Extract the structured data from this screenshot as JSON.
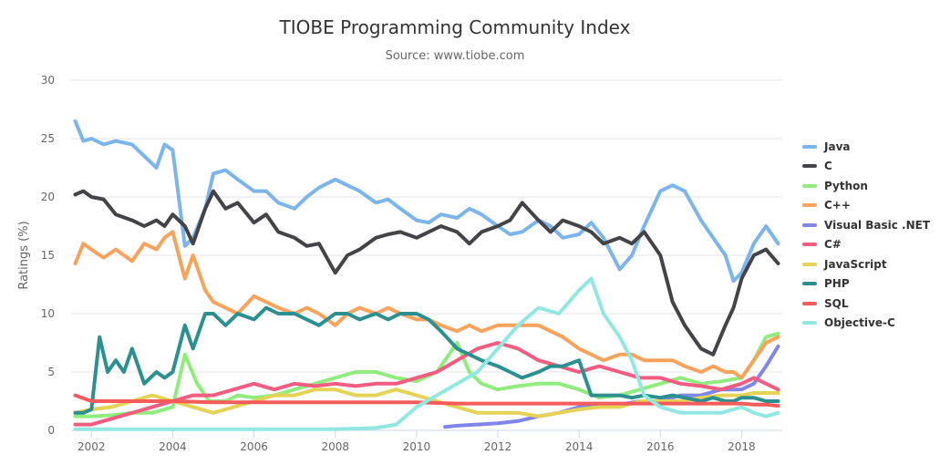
{
  "chart_data": {
    "type": "line",
    "title": "TIOBE Programming Community Index",
    "subtitle": "Source: www.tiobe.com",
    "ylabel": "Ratings (%)",
    "xlabel": "",
    "xlim": [
      2001.5,
      2019.0
    ],
    "ylim": [
      0,
      30
    ],
    "y_ticks": [
      0,
      5,
      10,
      15,
      20,
      25,
      30
    ],
    "x_ticks": [
      2002,
      2004,
      2006,
      2008,
      2010,
      2012,
      2014,
      2016,
      2018
    ],
    "grid": "horizontal",
    "legend_position": "right",
    "series": [
      {
        "name": "Java",
        "color": "#7cb5ec",
        "x": [
          2001.6,
          2001.8,
          2002,
          2002.3,
          2002.6,
          2003,
          2003.3,
          2003.6,
          2003.8,
          2004,
          2004.3,
          2004.5,
          2004.8,
          2005,
          2005.3,
          2005.6,
          2006,
          2006.3,
          2006.6,
          2007,
          2007.3,
          2007.6,
          2008,
          2008.3,
          2008.6,
          2009,
          2009.3,
          2009.6,
          2010,
          2010.3,
          2010.6,
          2011,
          2011.3,
          2011.6,
          2012,
          2012.3,
          2012.6,
          2013,
          2013.3,
          2013.6,
          2014,
          2014.3,
          2014.6,
          2015,
          2015.3,
          2015.6,
          2016,
          2016.3,
          2016.6,
          2017,
          2017.3,
          2017.6,
          2017.8,
          2018,
          2018.3,
          2018.6,
          2018.9
        ],
        "y": [
          26.5,
          24.8,
          25,
          24.5,
          24.8,
          24.5,
          23.5,
          22.5,
          24.5,
          24,
          15.8,
          16.5,
          19,
          22,
          22.3,
          21.5,
          20.5,
          20.5,
          19.5,
          19,
          20,
          20.8,
          21.5,
          21,
          20.5,
          19.5,
          19.8,
          19,
          18,
          17.8,
          18.5,
          18.2,
          19,
          18.5,
          17.5,
          16.8,
          17,
          18,
          17.5,
          16.5,
          16.8,
          17.8,
          16.5,
          13.8,
          15,
          17.5,
          20.5,
          21,
          20.5,
          18,
          16.5,
          15,
          12.8,
          13.5,
          16,
          17.5,
          16
        ]
      },
      {
        "name": "C",
        "color": "#434348",
        "x": [
          2001.6,
          2001.8,
          2002,
          2002.3,
          2002.6,
          2003,
          2003.3,
          2003.6,
          2003.8,
          2004,
          2004.3,
          2004.5,
          2004.8,
          2005,
          2005.3,
          2005.6,
          2006,
          2006.3,
          2006.6,
          2007,
          2007.3,
          2007.6,
          2008,
          2008.3,
          2008.6,
          2009,
          2009.3,
          2009.6,
          2010,
          2010.3,
          2010.6,
          2011,
          2011.3,
          2011.6,
          2012,
          2012.3,
          2012.6,
          2013,
          2013.3,
          2013.6,
          2014,
          2014.3,
          2014.6,
          2015,
          2015.3,
          2015.6,
          2016,
          2016.3,
          2016.6,
          2017,
          2017.3,
          2017.6,
          2017.8,
          2018,
          2018.3,
          2018.6,
          2018.9
        ],
        "y": [
          20.2,
          20.5,
          20,
          19.8,
          18.5,
          18,
          17.5,
          18,
          17.5,
          18.5,
          17.5,
          16,
          19,
          20.5,
          19,
          19.5,
          17.8,
          18.5,
          17,
          16.5,
          15.8,
          16,
          13.5,
          15,
          15.5,
          16.5,
          16.8,
          17,
          16.5,
          17,
          17.5,
          17,
          16,
          17,
          17.5,
          18,
          19.5,
          18,
          17,
          18,
          17.5,
          17,
          16,
          16.5,
          16,
          17,
          15,
          11,
          9,
          7,
          6.5,
          9,
          10.5,
          13,
          15,
          15.5,
          14.3
        ]
      },
      {
        "name": "Python",
        "color": "#90ed7d",
        "x": [
          2001.6,
          2002,
          2002.5,
          2003,
          2003.5,
          2004,
          2004.3,
          2004.6,
          2004.9,
          2005.3,
          2005.6,
          2006,
          2006.5,
          2007,
          2007.5,
          2008,
          2008.5,
          2009,
          2009.5,
          2010,
          2010.5,
          2011,
          2011.3,
          2011.6,
          2012,
          2012.5,
          2013,
          2013.5,
          2014,
          2014.5,
          2015,
          2015.5,
          2016,
          2016.5,
          2017,
          2017.5,
          2018,
          2018.3,
          2018.6,
          2018.9
        ],
        "y": [
          1.2,
          1.2,
          1.3,
          1.5,
          1.5,
          2,
          6.5,
          4,
          2.5,
          2.5,
          3,
          2.8,
          3,
          3.5,
          4,
          4.5,
          5,
          5,
          4.5,
          4.2,
          5,
          7.5,
          5,
          4,
          3.5,
          3.8,
          4,
          4,
          3.5,
          2.8,
          3,
          3.5,
          4,
          4.5,
          4,
          4.2,
          4.5,
          6,
          8,
          8.3
        ]
      },
      {
        "name": "C++",
        "color": "#f7a35c",
        "x": [
          2001.6,
          2001.8,
          2002,
          2002.3,
          2002.6,
          2003,
          2003.3,
          2003.6,
          2003.8,
          2004,
          2004.3,
          2004.5,
          2004.8,
          2005,
          2005.3,
          2005.6,
          2006,
          2006.3,
          2006.6,
          2007,
          2007.3,
          2007.6,
          2008,
          2008.3,
          2008.6,
          2009,
          2009.3,
          2009.6,
          2010,
          2010.3,
          2010.6,
          2011,
          2011.3,
          2011.6,
          2012,
          2012.3,
          2012.6,
          2013,
          2013.3,
          2013.6,
          2014,
          2014.3,
          2014.6,
          2015,
          2015.3,
          2015.6,
          2016,
          2016.3,
          2016.6,
          2017,
          2017.3,
          2017.6,
          2017.8,
          2018,
          2018.3,
          2018.6,
          2018.9
        ],
        "y": [
          14.3,
          16,
          15.5,
          14.8,
          15.5,
          14.5,
          16,
          15.5,
          16.5,
          17,
          13,
          15,
          12,
          11,
          10.5,
          10,
          11.5,
          11,
          10.5,
          10,
          10.5,
          10,
          9,
          10,
          10.5,
          10,
          10.5,
          10,
          9.5,
          9.5,
          9,
          8.5,
          9,
          8.5,
          9,
          9,
          9,
          9,
          8.5,
          8,
          7,
          6.5,
          6,
          6.5,
          6.5,
          6,
          6,
          6,
          5.5,
          5,
          5.5,
          5,
          5,
          4.5,
          6,
          7.5,
          8
        ]
      },
      {
        "name": "Visual Basic .NET",
        "color": "#8085e9",
        "x": [
          2010.7,
          2011,
          2011.5,
          2012,
          2012.5,
          2013,
          2013.5,
          2014,
          2014.5,
          2015,
          2015.5,
          2016,
          2016.5,
          2017,
          2017.5,
          2018,
          2018.3,
          2018.6,
          2018.9
        ],
        "y": [
          0.3,
          0.4,
          0.5,
          0.6,
          0.8,
          1.2,
          1.5,
          2,
          2,
          2.2,
          2.5,
          2.5,
          3,
          3,
          3.5,
          3.5,
          4,
          5.5,
          7.2
        ]
      },
      {
        "name": "C#",
        "color": "#f15c80",
        "x": [
          2001.6,
          2002,
          2002.5,
          2003,
          2003.5,
          2004,
          2004.5,
          2005,
          2005.5,
          2006,
          2006.5,
          2007,
          2007.5,
          2008,
          2008.5,
          2009,
          2009.5,
          2010,
          2010.5,
          2011,
          2011.5,
          2012,
          2012.5,
          2013,
          2013.5,
          2014,
          2014.5,
          2015,
          2015.5,
          2016,
          2016.5,
          2017,
          2017.5,
          2018,
          2018.3,
          2018.6,
          2018.9
        ],
        "y": [
          0.5,
          0.5,
          1,
          1.5,
          2,
          2.5,
          3,
          3,
          3.5,
          4,
          3.5,
          4,
          3.8,
          4,
          3.8,
          4,
          4,
          4.5,
          5,
          6,
          7,
          7.5,
          7,
          6,
          5.5,
          5,
          5.5,
          5,
          4.5,
          4.5,
          4,
          3.8,
          3.5,
          4,
          4.5,
          4,
          3.5
        ]
      },
      {
        "name": "JavaScript",
        "color": "#e4d354",
        "x": [
          2001.6,
          2002,
          2002.5,
          2003,
          2003.5,
          2004,
          2004.5,
          2005,
          2005.5,
          2006,
          2006.5,
          2007,
          2007.5,
          2008,
          2008.5,
          2009,
          2009.5,
          2010,
          2010.5,
          2011,
          2011.5,
          2012,
          2012.5,
          2013,
          2013.5,
          2014,
          2014.5,
          2015,
          2015.5,
          2016,
          2016.5,
          2017,
          2017.5,
          2018,
          2018.3,
          2018.6,
          2018.9
        ],
        "y": [
          1.5,
          1.8,
          2,
          2.5,
          3,
          2.5,
          2,
          1.5,
          2,
          2.5,
          3,
          3,
          3.5,
          3.5,
          3,
          3,
          3.5,
          3,
          2.5,
          2,
          1.5,
          1.5,
          1.5,
          1.2,
          1.5,
          1.8,
          2,
          2,
          2.5,
          2.5,
          2.5,
          2.8,
          3,
          3,
          3.2,
          3.2,
          3.2
        ]
      },
      {
        "name": "PHP",
        "color": "#2b908f",
        "x": [
          2001.6,
          2001.8,
          2002,
          2002.2,
          2002.4,
          2002.6,
          2002.8,
          2003,
          2003.3,
          2003.6,
          2003.8,
          2004,
          2004.3,
          2004.5,
          2004.8,
          2005,
          2005.3,
          2005.6,
          2006,
          2006.3,
          2006.6,
          2007,
          2007.3,
          2007.6,
          2008,
          2008.3,
          2008.6,
          2009,
          2009.3,
          2009.6,
          2010,
          2010.3,
          2010.6,
          2011,
          2011.3,
          2011.6,
          2012,
          2012.3,
          2012.6,
          2013,
          2013.3,
          2013.6,
          2014,
          2014.3,
          2014.6,
          2015,
          2015.3,
          2015.6,
          2016,
          2016.3,
          2016.6,
          2017,
          2017.3,
          2017.6,
          2017.8,
          2018,
          2018.3,
          2018.6,
          2018.9
        ],
        "y": [
          1.5,
          1.5,
          1.8,
          8,
          5,
          6,
          5,
          7,
          4,
          5,
          4.5,
          5,
          9,
          7,
          10,
          10,
          9,
          10,
          9.5,
          10.5,
          10,
          10,
          9.5,
          9,
          10,
          10,
          9.5,
          10,
          9.5,
          10,
          10,
          9.5,
          8.5,
          7,
          6.5,
          6,
          5.5,
          5,
          4.5,
          5,
          5.5,
          5.5,
          6,
          3,
          3,
          3,
          2.8,
          3,
          2.8,
          3,
          2.8,
          2.5,
          2.8,
          2.5,
          2.5,
          2.8,
          2.8,
          2.5,
          2.5
        ]
      },
      {
        "name": "SQL",
        "color": "#f45b5b",
        "x": [
          2001.6,
          2002,
          2003,
          2004,
          2005,
          2006,
          2007,
          2008,
          2009,
          2010,
          2011,
          2012,
          2013,
          2014,
          2015,
          2016,
          2017,
          2017.5,
          2018,
          2018.3,
          2018.6,
          2018.9
        ],
        "y": [
          3,
          2.5,
          2.5,
          2.5,
          2.4,
          2.4,
          2.4,
          2.4,
          2.4,
          2.4,
          2.3,
          2.3,
          2.3,
          2.3,
          2.3,
          2.3,
          2.3,
          2.3,
          2.3,
          2.2,
          2.2,
          2.1
        ]
      },
      {
        "name": "Objective-C",
        "color": "#91e8e1",
        "x": [
          2001.6,
          2002,
          2003,
          2004,
          2005,
          2006,
          2007,
          2008,
          2009,
          2009.5,
          2010,
          2010.5,
          2011,
          2011.5,
          2012,
          2012.5,
          2013,
          2013.5,
          2014,
          2014.3,
          2014.6,
          2015,
          2015.3,
          2015.6,
          2016,
          2016.5,
          2017,
          2017.5,
          2018,
          2018.3,
          2018.6,
          2018.9
        ],
        "y": [
          0.1,
          0.1,
          0.1,
          0.1,
          0.1,
          0.1,
          0.1,
          0.1,
          0.2,
          0.5,
          2,
          3,
          4,
          5,
          7,
          9,
          10.5,
          10,
          12,
          13,
          10,
          8,
          6,
          3,
          2,
          1.5,
          1.5,
          1.5,
          2,
          1.5,
          1.2,
          1.5
        ]
      }
    ]
  }
}
